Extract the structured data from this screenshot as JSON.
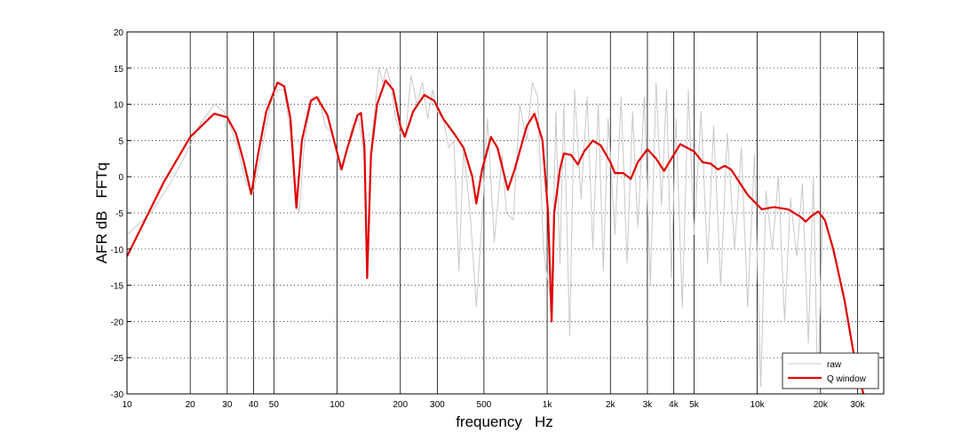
{
  "chart_data": {
    "type": "line",
    "xlabel": "frequency   Hz",
    "ylabel": "AFR dB   FFTq",
    "xscale": "log",
    "xlim": [
      10,
      40000
    ],
    "ylim": [
      -30,
      20
    ],
    "xticks": [
      10,
      20,
      30,
      40,
      50,
      100,
      200,
      300,
      500,
      {
        "value": 1000,
        "label": "1k"
      },
      {
        "value": 2000,
        "label": "2k"
      },
      {
        "value": 3000,
        "label": "3k"
      },
      {
        "value": 4000,
        "label": "4k"
      },
      {
        "value": 5000,
        "label": "5k"
      },
      {
        "value": 10000,
        "label": "10k"
      },
      {
        "value": 20000,
        "label": "20k"
      },
      {
        "value": 30000,
        "label": "30k"
      }
    ],
    "yticks": [
      -30,
      -25,
      -20,
      -15,
      -10,
      -5,
      0,
      5,
      10,
      15,
      20
    ],
    "grid": true,
    "legend": "lower right",
    "series": [
      {
        "name": "raw",
        "color": "#c8c8c8",
        "x": [
          10,
          13,
          16,
          19,
          22,
          26,
          29,
          33,
          37,
          40,
          44,
          48,
          52,
          56,
          60,
          63,
          66,
          70,
          76,
          82,
          88,
          95,
          103,
          110,
          118,
          127,
          134,
          140,
          146,
          152,
          158,
          165,
          172,
          180,
          190,
          200,
          212,
          225,
          240,
          255,
          270,
          285,
          300,
          320,
          340,
          360,
          380,
          400,
          430,
          460,
          490,
          520,
          560,
          610,
          640,
          690,
          740,
          800,
          850,
          900,
          960,
          1050,
          1100,
          1150,
          1200,
          1280,
          1350,
          1450,
          1550,
          1650,
          1750,
          1850,
          1950,
          2100,
          2250,
          2400,
          2550,
          2700,
          2900,
          3100,
          3300,
          3500,
          3700,
          3900,
          4100,
          4400,
          4700,
          5000,
          5400,
          5800,
          6200,
          6700,
          7200,
          7800,
          8400,
          9000,
          9700,
          10400,
          11000,
          11800,
          12600,
          13500,
          14400,
          15400,
          16400,
          17500,
          18500,
          19400,
          20500
        ],
        "values": [
          -8,
          -5,
          -1,
          3,
          7,
          10,
          9,
          5,
          -1,
          -2,
          4,
          10,
          12,
          12,
          6,
          -2,
          -5,
          5,
          11,
          11,
          7,
          6,
          1,
          3,
          7,
          8,
          3,
          -12,
          5,
          10,
          15,
          13,
          15,
          13,
          8,
          6,
          6,
          14,
          10,
          13,
          8,
          12,
          9,
          8,
          4,
          5,
          -13,
          4,
          -5,
          -18,
          -6,
          8,
          -9,
          3,
          -5,
          -6,
          10,
          5,
          13,
          11,
          -10,
          -18,
          9,
          -12,
          10,
          -22,
          12,
          -3,
          11,
          -10,
          10,
          -13,
          8,
          -8,
          11,
          -12,
          9,
          -7,
          11,
          -15,
          13,
          -4,
          12,
          -14,
          8,
          -18,
          12,
          -8,
          9,
          -12,
          7,
          -15,
          6,
          -10,
          4,
          -18,
          3,
          -29,
          -2,
          -10,
          0,
          -20,
          -3,
          -11,
          -1,
          -23,
          0,
          -30,
          -5
        ]
      },
      {
        "name": "Q window",
        "color": "#e00000",
        "x": [
          10,
          15,
          20,
          26,
          30,
          33,
          36,
          39,
          42,
          46,
          52,
          56,
          60,
          64,
          68,
          75,
          80,
          90,
          105,
          112,
          125,
          130,
          135,
          139,
          145,
          155,
          170,
          185,
          200,
          210,
          230,
          260,
          290,
          320,
          360,
          400,
          440,
          460,
          490,
          540,
          580,
          650,
          700,
          800,
          870,
          950,
          1010,
          1050,
          1080,
          1150,
          1200,
          1300,
          1400,
          1500,
          1650,
          1800,
          2000,
          2100,
          2300,
          2500,
          2700,
          3000,
          3300,
          3600,
          4000,
          4300,
          5000,
          5500,
          6000,
          6500,
          7000,
          7500,
          9000,
          10500,
          12000,
          14000,
          16000,
          17000,
          18000,
          19500,
          21000,
          23000,
          26000,
          29000,
          32000
        ],
        "values": [
          -11,
          -0.7,
          5.5,
          8.7,
          8.2,
          6,
          2,
          -2.4,
          3,
          9,
          13,
          12.5,
          8,
          -4.3,
          5,
          10.5,
          11,
          8.5,
          1,
          4,
          8.5,
          8.8,
          4,
          -14,
          3,
          10,
          13.3,
          12,
          7,
          5.5,
          9,
          11.3,
          10.5,
          8,
          6,
          4,
          0,
          -3.7,
          1,
          5.5,
          4,
          -1.8,
          1,
          7,
          8.7,
          5,
          -5,
          -20,
          -5,
          1,
          3.2,
          3,
          1.7,
          3.5,
          5,
          4.3,
          2,
          0.5,
          0.5,
          -0.3,
          2,
          3.8,
          2.5,
          0.8,
          3,
          4.5,
          3.5,
          2,
          1.8,
          1,
          1.5,
          1,
          -2.5,
          -4.5,
          -4.2,
          -4.5,
          -5.5,
          -6.2,
          -5.5,
          -4.8,
          -6,
          -10,
          -17,
          -25,
          -30
        ]
      }
    ]
  }
}
